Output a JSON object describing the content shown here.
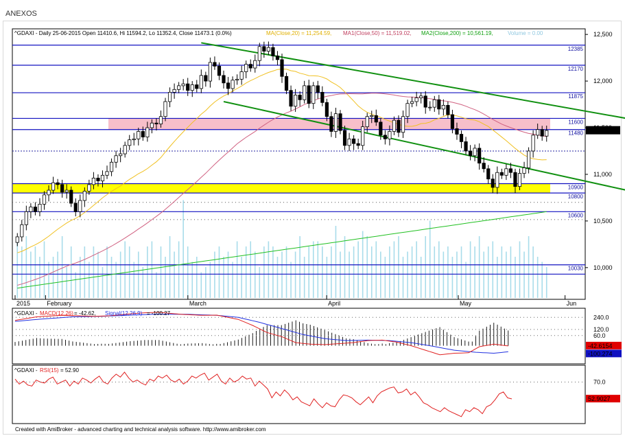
{
  "window": {
    "title": "ANEXOS"
  },
  "footer": "Created with AmiBroker - advanced charting and technical analysis software. http://www.amibroker.com",
  "chart_data": [
    {
      "type": "candlestick",
      "header": {
        "symbol_line": "^GDAXI - Daily 25-06-2015 Open 11410.6, Hi 11594.2, Lo 11352.4, Close 11473.1 (0.0%)",
        "ma": "MA(Close,20) = 11,254.59,",
        "ma1": "MA1(Close,50) = 11,519.02,",
        "ma2": "MA2(Close,200) = 10,561.19,",
        "volume": "Volume = 0.00"
      },
      "y_ticks": [
        "12,500",
        "12,000",
        "11,500",
        "11,000",
        "10,500",
        "10,000"
      ],
      "y_tick_values": [
        12500,
        12000,
        11500,
        11000,
        10500,
        10000
      ],
      "x_labels": [
        "2015",
        "February",
        "March",
        "April",
        "May",
        "Jun"
      ],
      "ylim": [
        9660,
        12560
      ],
      "current_price": "11,473.1",
      "current_value": 11473.1,
      "hlines": [
        {
          "label": "12385",
          "value": 12385
        },
        {
          "label": "12170",
          "value": 12170
        },
        {
          "label": "11875",
          "value": 11875
        },
        {
          "label": "11600",
          "value": 11600
        },
        {
          "label": "11480",
          "value": 11480
        },
        {
          "label": "10900",
          "value": 10900
        },
        {
          "label": "10800",
          "value": 10800
        },
        {
          "label": "10600",
          "value": 10600
        },
        {
          "label": "10030",
          "value": 10030
        }
      ],
      "zones": [
        {
          "from": 11480,
          "to": 11600,
          "color": "#f6b8c4"
        },
        {
          "from": 10800,
          "to": 10900,
          "color": "#ffff00"
        }
      ],
      "channel_upper": [
        [
          41,
          12410
        ],
        [
          151,
          11470
        ]
      ],
      "channel_lower": [
        [
          46,
          11780
        ],
        [
          150,
          10680
        ]
      ],
      "close": [
        10330,
        10460,
        10600,
        10650,
        10600,
        10680,
        10780,
        10830,
        10910,
        10890,
        10810,
        10830,
        10690,
        10600,
        10720,
        10820,
        10890,
        10960,
        10930,
        10990,
        11030,
        11130,
        11200,
        11220,
        11310,
        11370,
        11380,
        11460,
        11400,
        11500,
        11550,
        11540,
        11620,
        11780,
        11880,
        11910,
        11950,
        11970,
        11900,
        11960,
        11920,
        12060,
        12000,
        12200,
        12160,
        12060,
        11980,
        11920,
        12010,
        12020,
        12100,
        12180,
        12140,
        12220,
        12370,
        12320,
        12360,
        12270,
        12230,
        12050,
        11900,
        11730,
        11850,
        11800,
        11950,
        11760,
        11950,
        11880,
        11770,
        11620,
        11460,
        11650,
        11470,
        11310,
        11380,
        11330,
        11310,
        11510,
        11620,
        11630,
        11560,
        11420,
        11380,
        11460,
        11580,
        11450,
        11620,
        11760,
        11780,
        11820,
        11840,
        11720,
        11720,
        11800,
        11700,
        11740,
        11640,
        11490,
        11430,
        11350,
        11250,
        11200,
        11280,
        11120,
        11060,
        10950,
        10860,
        11020,
        10990,
        11060,
        11020,
        10870,
        11010,
        11070,
        11250,
        11420,
        11480,
        11410,
        11470
      ],
      "ma20_start": 10150,
      "ma50_start": 9800,
      "ma200": [
        9780,
        10600
      ],
      "volume_max": 1.0,
      "volume": [
        0.55,
        0.5,
        0.6,
        0.45,
        0.5,
        0.4,
        0.55,
        0.35,
        0.4,
        0.45,
        0.6,
        0.3,
        0.5,
        0.25,
        0.4,
        0.5,
        0.35,
        0.5,
        0.45,
        0.3,
        0.5,
        0.4,
        0.35,
        0.45,
        0.55,
        0.5,
        0.35,
        0.45,
        0.3,
        0.5,
        0.55,
        0.25,
        0.5,
        0.4,
        0.6,
        0.45,
        0.55,
        0.95,
        0.5,
        0.35,
        0.4,
        0.25,
        0.3,
        0.35,
        0.45,
        0.5,
        0.4,
        0.45,
        0.35,
        0.55,
        0.4,
        0.5,
        0.55,
        0.45,
        0.3,
        0.5,
        0.55,
        0.5,
        0.4,
        0.45,
        0.5,
        0.35,
        0.45,
        0.6,
        0.4,
        0.5,
        0.55,
        0.55,
        0.5,
        0.4,
        0.5,
        0.7,
        0.45,
        0.6,
        0.45,
        0.5,
        0.55,
        0.65,
        0.6,
        0.5,
        0.55,
        0.45,
        0.4,
        0.5,
        0.55,
        0.6,
        0.4,
        0.45,
        0.5,
        0.55,
        0.4,
        0.6,
        0.75,
        0.5,
        0.55,
        0.45,
        0.5,
        0.4,
        0.45,
        0.5,
        0.35,
        0.55,
        0.5,
        0.6,
        0.45,
        0.5,
        0.55,
        0.4,
        0.5,
        0.45,
        0.5,
        0.4,
        0.55,
        0.45,
        0.6,
        0.5,
        0.4,
        0.35,
        0.3
      ]
    },
    {
      "type": "line",
      "header": {
        "prefix": "^GDAXI -",
        "macd": "MACD(12,26)",
        "macd_val": "= -42.62,",
        "signal": "Signal(12,26,9)",
        "signal_val": "= -100.27"
      },
      "y_ticks": [
        "240.0",
        "120.0",
        "60.0"
      ],
      "y_tick_values": [
        240,
        120,
        60
      ],
      "ylim": [
        -220,
        330
      ],
      "macd_value": "-42.6154",
      "macd_last": -42.62,
      "signal_value": "-100.274",
      "signal_last": -100.27,
      "macd_keys": [
        [
          0,
          210
        ],
        [
          6,
          245
        ],
        [
          13,
          260
        ],
        [
          18,
          255
        ],
        [
          22,
          250
        ],
        [
          26,
          255
        ],
        [
          32,
          275
        ],
        [
          36,
          285
        ],
        [
          40,
          290
        ],
        [
          46,
          270
        ],
        [
          52,
          260
        ],
        [
          56,
          262
        ],
        [
          62,
          220
        ],
        [
          66,
          160
        ],
        [
          70,
          90
        ],
        [
          74,
          50
        ],
        [
          78,
          -10
        ],
        [
          82,
          -25
        ],
        [
          86,
          -30
        ],
        [
          90,
          -20
        ],
        [
          94,
          -10
        ],
        [
          98,
          10
        ],
        [
          102,
          15
        ],
        [
          106,
          -5
        ],
        [
          110,
          -40
        ],
        [
          114,
          -85
        ],
        [
          118,
          -130
        ],
        [
          122,
          -115
        ],
        [
          126,
          -110
        ],
        [
          129,
          -50
        ],
        [
          133,
          -25
        ],
        [
          137,
          -42.62
        ]
      ],
      "signal_keys": [
        [
          0,
          200
        ],
        [
          8,
          225
        ],
        [
          16,
          245
        ],
        [
          24,
          250
        ],
        [
          32,
          262
        ],
        [
          40,
          272
        ],
        [
          48,
          270
        ],
        [
          56,
          260
        ],
        [
          62,
          240
        ],
        [
          68,
          190
        ],
        [
          74,
          130
        ],
        [
          80,
          70
        ],
        [
          86,
          30
        ],
        [
          92,
          10
        ],
        [
          98,
          15
        ],
        [
          104,
          10
        ],
        [
          110,
          -10
        ],
        [
          116,
          -45
        ],
        [
          122,
          -85
        ],
        [
          128,
          -105
        ],
        [
          133,
          -115
        ],
        [
          137,
          -100.27
        ]
      ]
    },
    {
      "type": "line",
      "header": {
        "prefix": "^GDAXI -",
        "rsi": "RSI(15)",
        "rsi_val": "= 52.90"
      },
      "y_ticks": [
        "70.0"
      ],
      "y_tick_values": [
        70
      ],
      "ylim": [
        28,
        87
      ],
      "rsi_value": "52.9027",
      "rsi_last": 52.9,
      "rsi": [
        73,
        68,
        71,
        67,
        66,
        72,
        70,
        69,
        73,
        75,
        68,
        70,
        72,
        66,
        71,
        68,
        74,
        72,
        69,
        73,
        76,
        70,
        68,
        74,
        78,
        75,
        80,
        74,
        70,
        72,
        69,
        67,
        73,
        71,
        76,
        74,
        77,
        72,
        70,
        73,
        68,
        71,
        76,
        74,
        77,
        79,
        72,
        75,
        78,
        71,
        68,
        74,
        70,
        72,
        76,
        73,
        74,
        66,
        71,
        67,
        63,
        54,
        60,
        56,
        62,
        58,
        52,
        55,
        50,
        48,
        46,
        53,
        48,
        44,
        49,
        46,
        45,
        52,
        57,
        56,
        54,
        50,
        47,
        51,
        55,
        49,
        56,
        60,
        62,
        64,
        65,
        59,
        60,
        63,
        57,
        60,
        55,
        49,
        47,
        44,
        42,
        40,
        44,
        41,
        39,
        37,
        35,
        42,
        40,
        44,
        42,
        38,
        45,
        47,
        52,
        58,
        60,
        54,
        53
      ]
    }
  ]
}
